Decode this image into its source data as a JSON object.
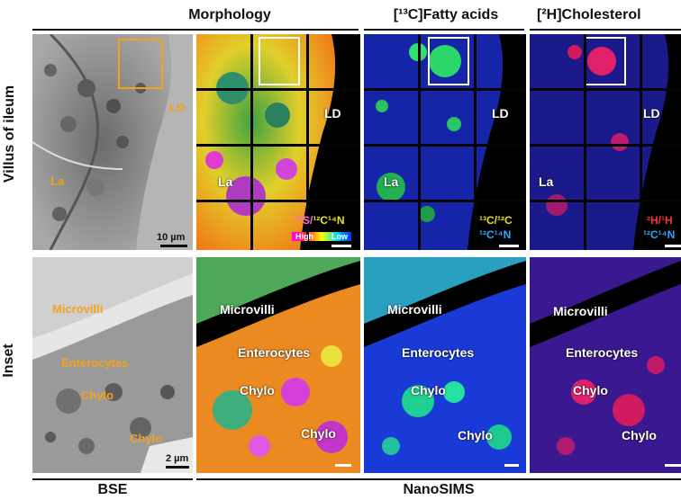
{
  "headers": {
    "morphology": "Morphology",
    "fatty_acids": "[¹³C]Fatty acids",
    "cholesterol": "[²H]Cholesterol"
  },
  "row_labels": {
    "top": "Villus of ileum",
    "bottom": "Inset"
  },
  "footer": {
    "bse": "BSE",
    "nanosims": "NanoSIMS"
  },
  "labels": {
    "ld": "LD",
    "la": "La",
    "microvilli": "Microvilli",
    "enterocytes": "Enterocytes",
    "chylo": "Chylo"
  },
  "scale_bars": {
    "top": "10 µm",
    "bottom": "2 µm"
  },
  "legends": {
    "morph_ratio_a": "³²S/",
    "morph_ratio_b": "¹²C¹⁴N",
    "color_high": "High",
    "color_low": "Low",
    "fa_ratio": "¹³C/¹²C",
    "fa_ref": "¹²C¹⁴N",
    "ch_ratio": "²H/¹H",
    "ch_ref": "¹²C¹⁴N"
  },
  "colors": {
    "orange": "#f3a21a",
    "cn_blue": "#2aa8ff"
  }
}
